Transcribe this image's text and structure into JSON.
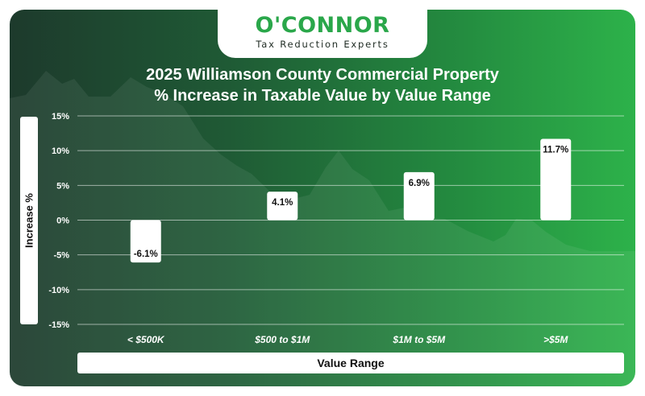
{
  "logo": {
    "name": "O'CONNOR",
    "tagline": "Tax Reduction Experts"
  },
  "colors": {
    "brand_green": "#2aa74a",
    "bar_fill": "#ffffff",
    "bar_label": "#111111",
    "tick_label": "#ffffff"
  },
  "chart_data": {
    "type": "bar",
    "title": "2025 Williamson County Commercial Property",
    "subtitle": "% Increase in Taxable Value by Value Range",
    "xlabel": "Value Range",
    "ylabel": "Increase %",
    "categories": [
      "< $500K",
      "$500 to $1M",
      "$1M to $5M",
      ">$5M"
    ],
    "values": [
      -6.1,
      4.1,
      6.9,
      11.7
    ],
    "value_labels": [
      "-6.1%",
      "4.1%",
      "6.9%",
      "11.7%"
    ],
    "ylim": [
      -15,
      15
    ],
    "yticks": [
      15,
      10,
      5,
      0,
      -5,
      -10,
      -15
    ],
    "ytick_labels": [
      "15%",
      "10%",
      "5%",
      "0%",
      "-5%",
      "-10%",
      "-15%"
    ],
    "grid": true,
    "legend": "none"
  }
}
